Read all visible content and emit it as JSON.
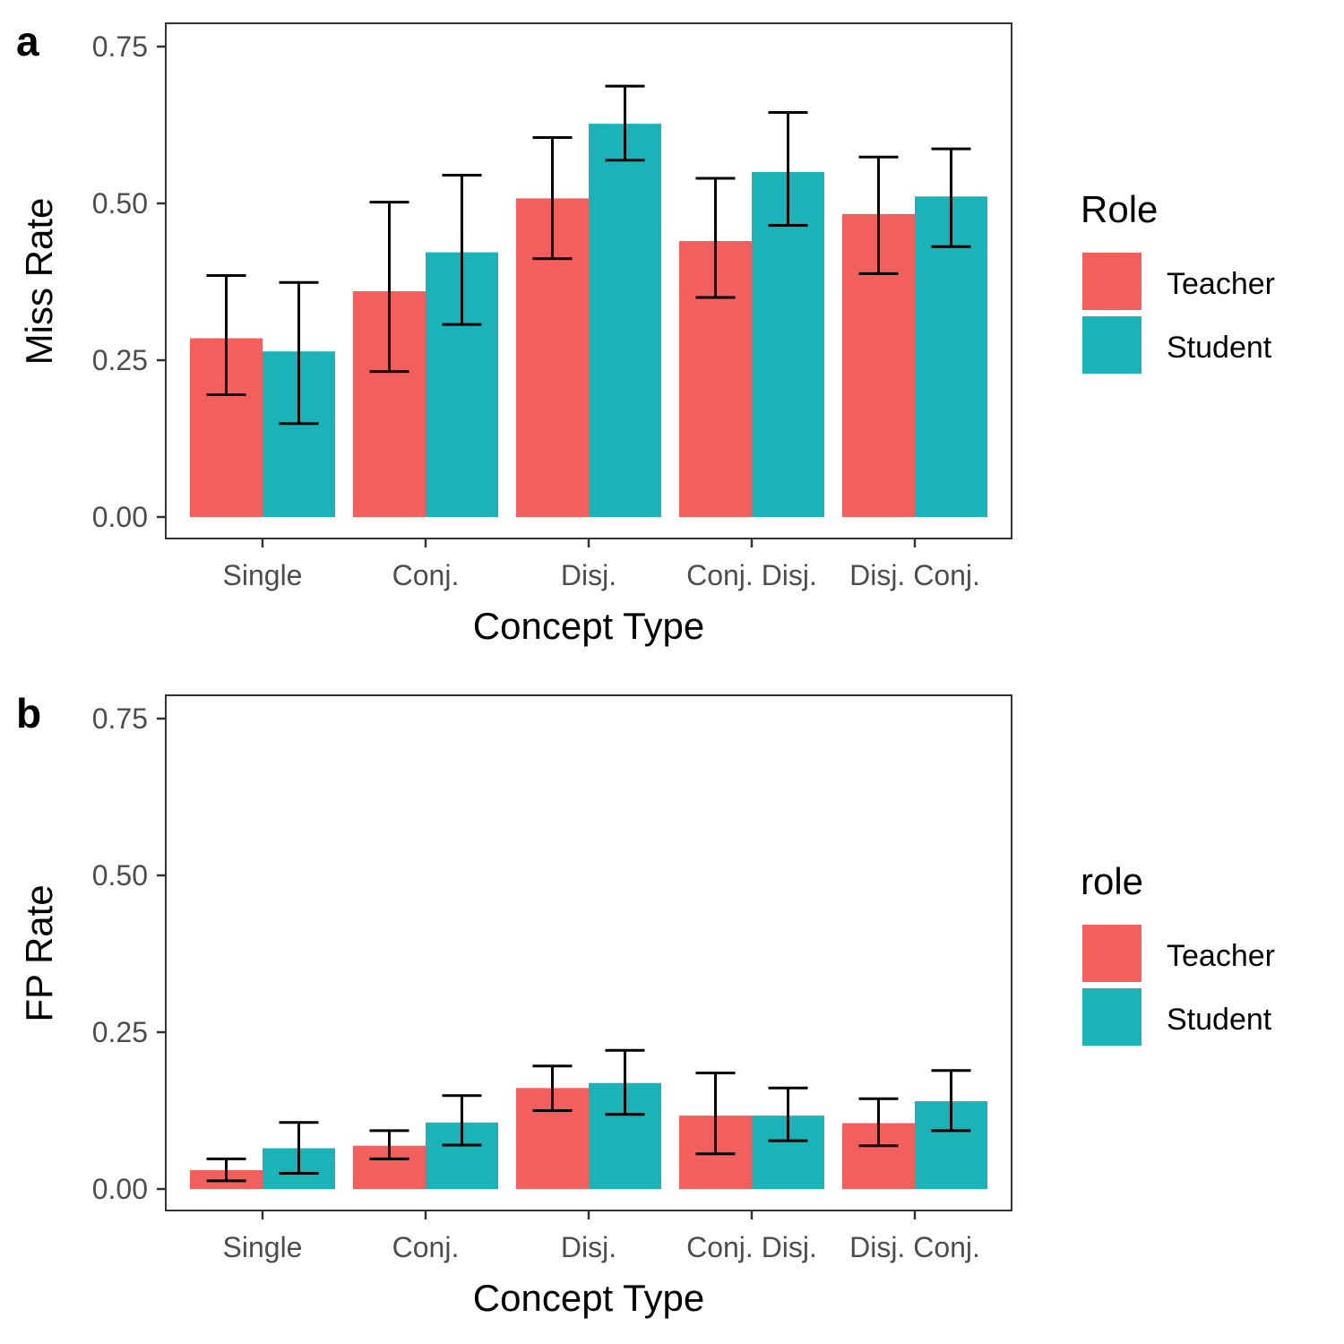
{
  "chart_data": [
    {
      "type": "bar",
      "panel_tag": "a",
      "categories": [
        "Single",
        "Conj.",
        "Disj.",
        "Conj. Disj.",
        "Disj. Conj."
      ],
      "series": [
        {
          "name": "Teacher",
          "color": "#F25F5C",
          "values": [
            0.285,
            0.36,
            0.508,
            0.44,
            0.483
          ],
          "err_low": [
            0.195,
            0.232,
            0.412,
            0.35,
            0.388
          ],
          "err_high": [
            0.385,
            0.502,
            0.605,
            0.54,
            0.574
          ]
        },
        {
          "name": "Student",
          "color": "#1AB4B8",
          "values": [
            0.264,
            0.422,
            0.627,
            0.55,
            0.511
          ],
          "err_low": [
            0.149,
            0.307,
            0.569,
            0.465,
            0.431
          ],
          "err_high": [
            0.374,
            0.545,
            0.687,
            0.645,
            0.587
          ]
        }
      ],
      "xlabel": "Concept Type",
      "ylabel": "Miss Rate",
      "ylim": [
        0,
        0.75
      ],
      "yticks": [
        "0.00",
        "0.25",
        "0.50",
        "0.75"
      ],
      "legend": {
        "title": "Role",
        "placement": "right",
        "labels": [
          "Teacher",
          "Student"
        ]
      },
      "grid": false
    },
    {
      "type": "bar",
      "panel_tag": "b",
      "categories": [
        "Single",
        "Conj.",
        "Disj.",
        "Conj. Disj.",
        "Disj. Conj."
      ],
      "series": [
        {
          "name": "Teacher",
          "color": "#F25F5C",
          "values": [
            0.03,
            0.069,
            0.161,
            0.117,
            0.105
          ],
          "err_low": [
            0.013,
            0.048,
            0.125,
            0.056,
            0.069
          ],
          "err_high": [
            0.048,
            0.093,
            0.196,
            0.185,
            0.144
          ]
        },
        {
          "name": "Student",
          "color": "#1AB4B8",
          "values": [
            0.065,
            0.106,
            0.169,
            0.117,
            0.14
          ],
          "err_low": [
            0.025,
            0.07,
            0.119,
            0.077,
            0.093
          ],
          "err_high": [
            0.106,
            0.149,
            0.221,
            0.161,
            0.189
          ]
        }
      ],
      "xlabel": "Concept Type",
      "ylabel": "FP Rate",
      "ylim": [
        0,
        0.75
      ],
      "yticks": [
        "0.00",
        "0.25",
        "0.50",
        "0.75"
      ],
      "legend": {
        "title": "role",
        "placement": "right",
        "labels": [
          "Teacher",
          "Student"
        ]
      },
      "grid": false
    }
  ]
}
